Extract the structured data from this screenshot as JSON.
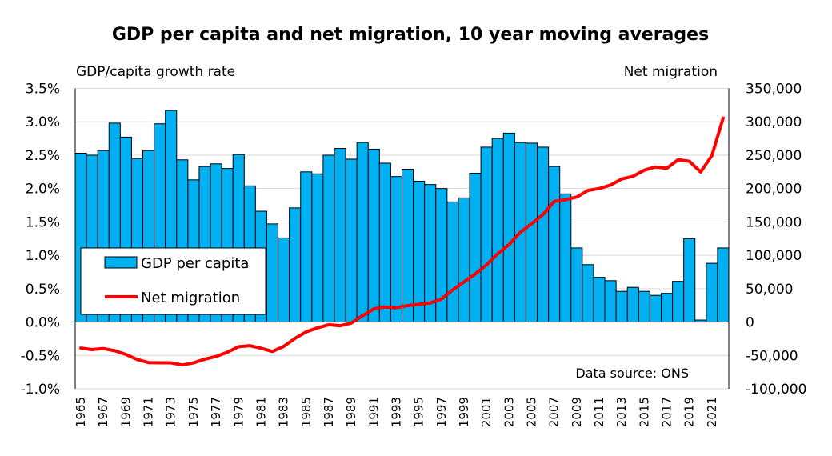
{
  "chart_data": {
    "type": "bar+line",
    "title": "GDP per capita and net migration, 10 year moving averages",
    "left_axis": {
      "label": "GDP/capita growth rate",
      "range": [
        -0.01,
        0.035
      ],
      "ticks": [
        -0.01,
        -0.005,
        0,
        0.005,
        0.01,
        0.015,
        0.02,
        0.025,
        0.03,
        0.035
      ],
      "tick_labels": [
        "-1.0%",
        "-0.5%",
        "0.0%",
        "0.5%",
        "1.0%",
        "1.5%",
        "2.0%",
        "2.5%",
        "3.0%",
        "3.5%"
      ]
    },
    "right_axis": {
      "label": "Net migration",
      "range": [
        -100000,
        350000
      ],
      "ticks": [
        -100000,
        -50000,
        0,
        50000,
        100000,
        150000,
        200000,
        250000,
        300000,
        350000
      ],
      "tick_labels": [
        "-100,000",
        "-50,000",
        "0",
        "50,000",
        "100,000",
        "150,000",
        "200,000",
        "250,000",
        "300,000",
        "350,000"
      ]
    },
    "grid": true,
    "legend_position": "lower-left",
    "annotation": "Data source: ONS",
    "categories": [
      1965,
      1966,
      1967,
      1968,
      1969,
      1970,
      1971,
      1972,
      1973,
      1974,
      1975,
      1976,
      1977,
      1978,
      1979,
      1980,
      1981,
      1982,
      1983,
      1984,
      1985,
      1986,
      1987,
      1988,
      1989,
      1990,
      1991,
      1992,
      1993,
      1994,
      1995,
      1996,
      1997,
      1998,
      1999,
      2000,
      2001,
      2002,
      2003,
      2004,
      2005,
      2006,
      2007,
      2008,
      2009,
      2010,
      2011,
      2012,
      2013,
      2014,
      2015,
      2016,
      2017,
      2018,
      2019,
      2020,
      2021,
      2022
    ],
    "x_tick_labels": [
      "1965",
      "1967",
      "1969",
      "1971",
      "1973",
      "1975",
      "1977",
      "1979",
      "1981",
      "1983",
      "1985",
      "1987",
      "1989",
      "1991",
      "1993",
      "1995",
      "1997",
      "1999",
      "2001",
      "2003",
      "2005",
      "2007",
      "2009",
      "2011",
      "2013",
      "2015",
      "2017",
      "2019",
      "2021"
    ],
    "series": [
      {
        "name": "GDP per capita",
        "type": "bar",
        "axis": "left",
        "color": "#00B0F0",
        "values": [
          0.0253,
          0.025,
          0.0257,
          0.0298,
          0.0277,
          0.0245,
          0.0257,
          0.0297,
          0.0317,
          0.0243,
          0.0213,
          0.0233,
          0.0237,
          0.023,
          0.0251,
          0.0204,
          0.0166,
          0.0147,
          0.0126,
          0.0171,
          0.0225,
          0.0222,
          0.025,
          0.026,
          0.0244,
          0.0269,
          0.0259,
          0.0238,
          0.0218,
          0.0229,
          0.0211,
          0.0206,
          0.02,
          0.018,
          0.0186,
          0.0223,
          0.0262,
          0.0275,
          0.0283,
          0.0269,
          0.0268,
          0.0262,
          0.0233,
          0.0192,
          0.0111,
          0.0086,
          0.0067,
          0.0062,
          0.0046,
          0.0052,
          0.0046,
          0.004,
          0.0043,
          0.0061,
          0.0125,
          0.0003,
          0.0088,
          0.0111
        ]
      },
      {
        "name": "Net migration",
        "type": "line",
        "axis": "right",
        "color": "#FF0000",
        "values": [
          -39000,
          -41300,
          -39700,
          -42900,
          -48500,
          -56000,
          -60700,
          -61100,
          -61100,
          -64300,
          -61100,
          -55600,
          -51600,
          -45200,
          -36900,
          -35500,
          -39200,
          -44000,
          -36500,
          -24600,
          -14700,
          -8700,
          -4000,
          -5600,
          -1600,
          9500,
          19800,
          22600,
          21400,
          24600,
          26600,
          28500,
          34300,
          48300,
          60000,
          72000,
          85600,
          102400,
          116000,
          134400,
          147200,
          160800,
          180800,
          183200,
          187200,
          197100,
          200000,
          205100,
          214300,
          218300,
          227500,
          232300,
          230300,
          243200,
          240800,
          224800,
          249400,
          305600
        ]
      }
    ]
  }
}
